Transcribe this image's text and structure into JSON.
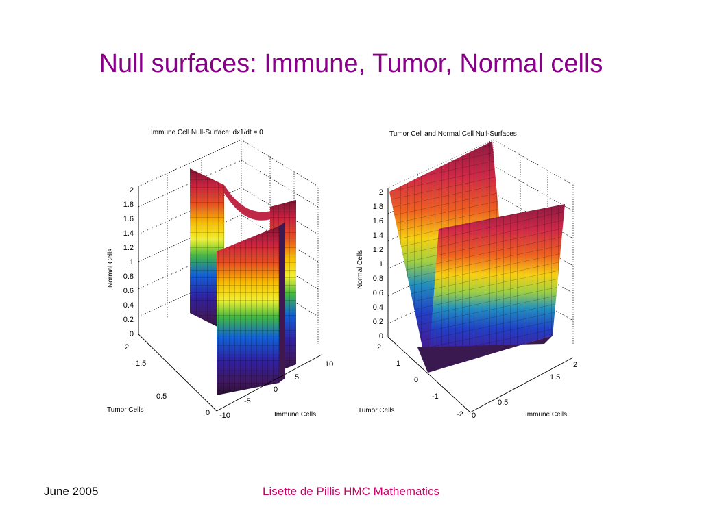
{
  "slide": {
    "title": "Null surfaces: Immune, Tumor, Normal cells",
    "footer_date": "June 2005",
    "footer_author": "Lisette de Pillis HMC Mathematics"
  },
  "chart_data": [
    {
      "type": "surface3d",
      "title": "Immune Cell Null-Surface: dx1/dt = 0",
      "xlabel": "Immune Cells",
      "ylabel": "Tumor Cells",
      "zlabel": "Normal Cells",
      "x_ticks": [
        "-10",
        "-5",
        "0",
        "5",
        "10"
      ],
      "y_ticks": [
        "0",
        "0.5",
        "1.5",
        "2"
      ],
      "z_ticks": [
        "0",
        "0.2",
        "0.4",
        "0.6",
        "0.8",
        "1",
        "1.2",
        "1.4",
        "1.6",
        "1.8",
        "2"
      ],
      "zlim": [
        0,
        2
      ],
      "colormap": "hsv",
      "grid": true
    },
    {
      "type": "surface3d",
      "title": "Tumor Cell and Normal Cell Null-Surfaces",
      "xlabel": "Immune Cells",
      "ylabel": "Tumor Cells",
      "zlabel": "Normal Cells",
      "x_ticks": [
        "0",
        "0.5",
        "1.5",
        "2"
      ],
      "y_ticks": [
        "-2",
        "-1",
        "0",
        "1",
        "2"
      ],
      "z_ticks": [
        "0",
        "0.2",
        "0.4",
        "0.6",
        "0.8",
        "1",
        "1.2",
        "1.4",
        "1.6",
        "1.8",
        "2"
      ],
      "zlim": [
        0,
        2
      ],
      "colormap": "hsv",
      "grid": true
    }
  ]
}
